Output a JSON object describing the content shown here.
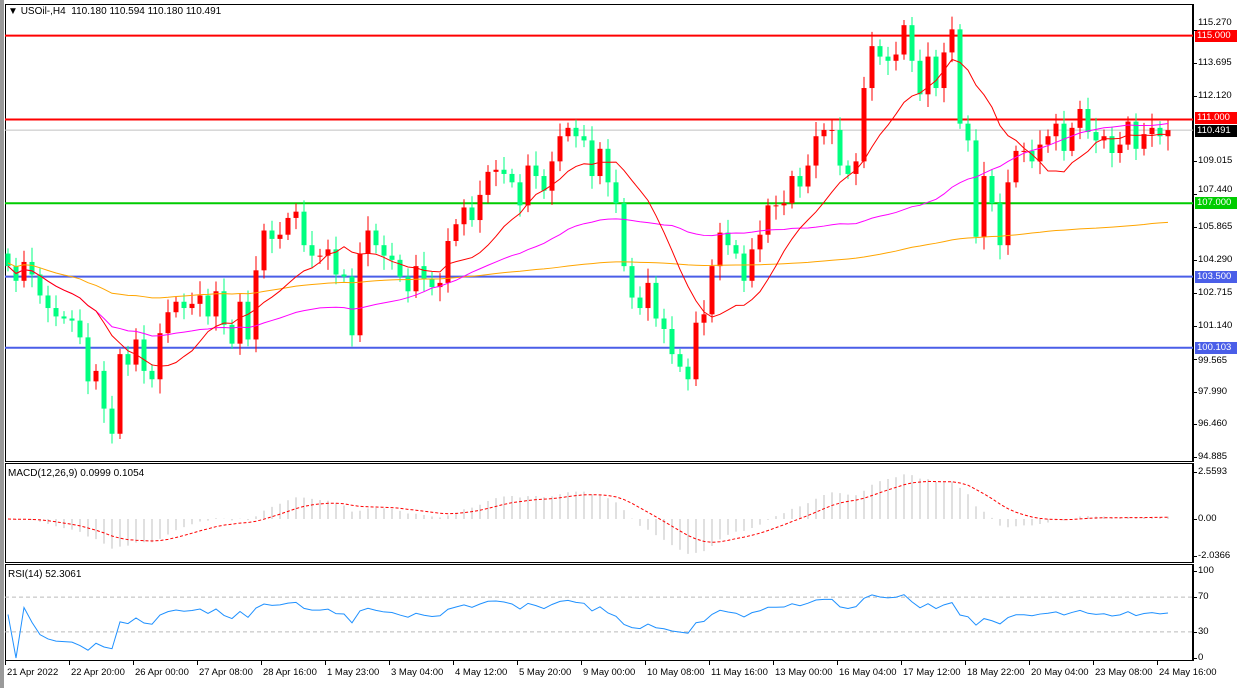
{
  "header": {
    "symbol_label": "USOil-,H4",
    "ohlc": "110.180 110.594 110.180 110.491"
  },
  "price_axis": {
    "ticks": [
      "115.270",
      "113.695",
      "112.120",
      "109.015",
      "107.440",
      "105.865",
      "104.290",
      "102.715",
      "101.140",
      "99.565",
      "97.990",
      "96.460",
      "94.885"
    ]
  },
  "levels": [
    {
      "price": 115.0,
      "label": "115.000",
      "color": "#ff0000"
    },
    {
      "price": 111.0,
      "label": "111.000",
      "color": "#ff0000"
    },
    {
      "price": 110.491,
      "label": "110.491",
      "color": "#000000",
      "line_color": "#c0c0c0"
    },
    {
      "price": 107.0,
      "label": "107.000",
      "color": "#00cc00"
    },
    {
      "price": 103.5,
      "label": "103.500",
      "color": "#4a5ee8"
    },
    {
      "price": 100.103,
      "label": "100.103",
      "color": "#4a5ee8"
    }
  ],
  "colors": {
    "bull": "#ff0000",
    "bear": "#00ff80",
    "ma_fast": "#ff0000",
    "ma_mid": "#ff00ff",
    "ma_slow": "#ffa500",
    "macd_hist": "#c0c0c0",
    "macd_signal": "#ff0000",
    "rsi": "#1e90ff"
  },
  "macd": {
    "label": "MACD(12,26,9) 0.0999 0.1054",
    "ticks": [
      "2.5593",
      "0.00",
      "-2.0366"
    ]
  },
  "rsi": {
    "label": "RSI(14) 52.3061",
    "ticks": [
      "100",
      "70",
      "30",
      "0"
    ]
  },
  "time_axis": [
    "21 Apr 2022",
    "22 Apr 20:00",
    "26 Apr 00:00",
    "27 Apr 08:00",
    "28 Apr 16:00",
    "1 May 23:00",
    "3 May 04:00",
    "4 May 12:00",
    "5 May 20:00",
    "9 May 00:00",
    "10 May 08:00",
    "11 May 16:00",
    "13 May 00:00",
    "16 May 04:00",
    "17 May 12:00",
    "18 May 22:00",
    "20 May 04:00",
    "23 May 08:00",
    "24 May 16:00"
  ],
  "chart_data": {
    "type": "candlestick",
    "symbol": "USOil-",
    "timeframe": "H4",
    "ylim": [
      94.885,
      115.7
    ],
    "first_open": 104.6,
    "closes": [
      104.0,
      103.3,
      104.2,
      103.6,
      102.6,
      102.0,
      101.6,
      101.5,
      101.4,
      100.6,
      98.5,
      99.0,
      97.2,
      96.0,
      99.8,
      99.3,
      100.5,
      99.0,
      98.6,
      100.8,
      101.8,
      102.3,
      102.0,
      102.2,
      102.6,
      101.6,
      102.8,
      101.2,
      100.3,
      102.3,
      100.5,
      103.8,
      105.7,
      105.3,
      105.5,
      106.3,
      106.6,
      105.0,
      104.5,
      104.5,
      104.8,
      103.6,
      103.5,
      100.7,
      104.6,
      105.7,
      105.0,
      104.5,
      104.3,
      103.5,
      102.8,
      104.0,
      103.4,
      103.0,
      103.2,
      105.2,
      106.0,
      106.8,
      106.2,
      107.4,
      108.5,
      108.6,
      108.4,
      108.0,
      106.9,
      108.8,
      108.3,
      107.6,
      109.0,
      110.2,
      110.6,
      110.2,
      110.0,
      108.3,
      109.6,
      108.0,
      107.0,
      104.0,
      102.5,
      102.0,
      103.2,
      101.5,
      101.0,
      99.8,
      99.2,
      98.6,
      101.3,
      101.7,
      104.0,
      105.6,
      105.0,
      104.6,
      103.3,
      104.8,
      105.5,
      106.9,
      106.9,
      107.0,
      108.3,
      107.8,
      108.8,
      110.2,
      110.5,
      110.5,
      108.8,
      108.4,
      109.0,
      112.5,
      114.5,
      114.0,
      113.8,
      114.1,
      115.5,
      113.8,
      112.2,
      114.0,
      112.5,
      114.2,
      115.3,
      110.8,
      110.0,
      105.4,
      108.3,
      107.0,
      105.0,
      108.0,
      109.5,
      109.5,
      109.0,
      109.8,
      110.2,
      110.8,
      109.5,
      110.6,
      111.5,
      110.4,
      110.0,
      110.2,
      109.4,
      109.8,
      110.9,
      109.6,
      110.3,
      110.6,
      110.2,
      110.491
    ]
  }
}
